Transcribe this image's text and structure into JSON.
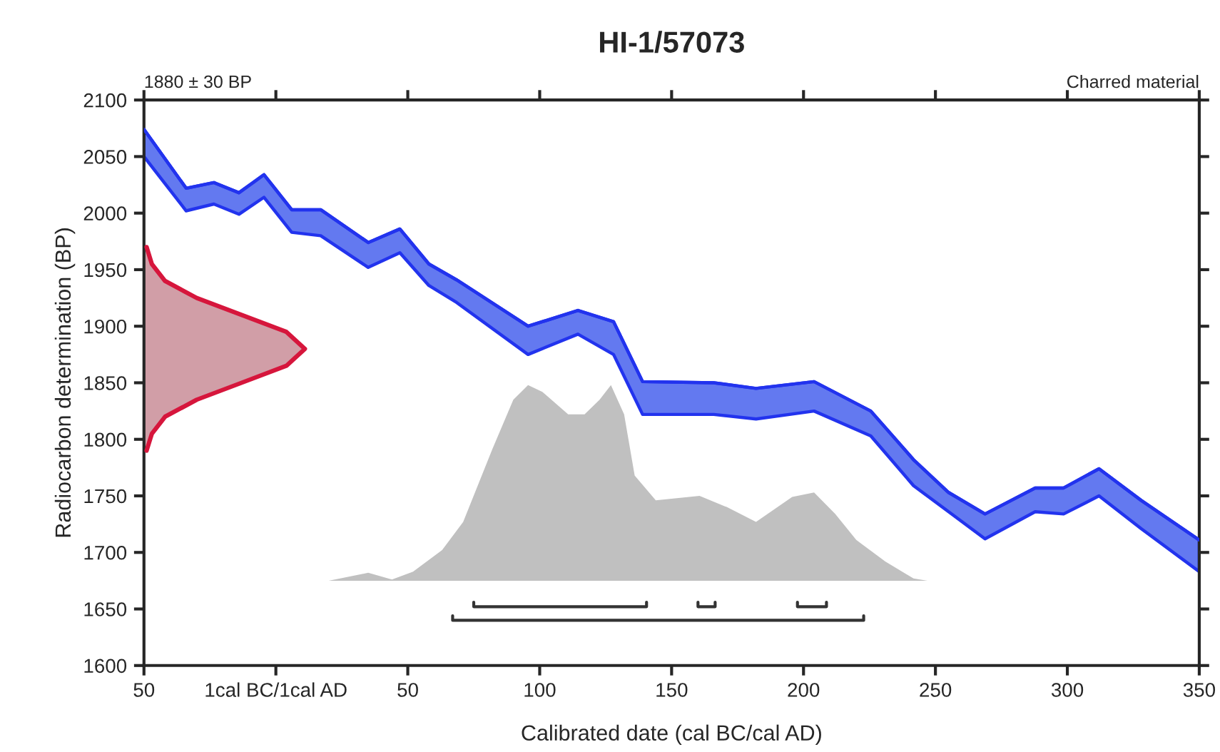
{
  "chart_data": {
    "type": "area",
    "title": "HI-1/57073",
    "xlabel": "Calibrated date (cal BC/cal AD)",
    "ylabel": "Radiocarbon determination (BP)",
    "annotations": [
      "1880 ± 30 BP",
      "Charred material"
    ],
    "xlim": [
      -50,
      350
    ],
    "xticks": [
      {
        "value": -50,
        "label": "50"
      },
      {
        "value": 0,
        "label": "1cal BC/1cal AD"
      },
      50,
      100,
      150,
      200,
      250,
      300,
      350
    ],
    "ylim": [
      1600,
      2100
    ],
    "yticks": [
      1600,
      1650,
      1700,
      1750,
      1800,
      1850,
      1900,
      1950,
      2000,
      2050,
      2100
    ],
    "grid": false,
    "legend": false,
    "series": [
      {
        "type": "line",
        "color": "#2233ee",
        "x": [
          -50,
          -34,
          -23.5,
          -14,
          -4.5,
          6,
          17,
          35,
          47,
          58,
          68.5,
          95.6,
          114.5,
          128,
          139,
          166,
          182,
          204,
          225.5,
          241.7,
          255,
          268.8,
          287.8,
          298.6,
          312,
          328,
          350
        ],
        "upper": [
          2074,
          2022,
          2027,
          2018,
          2034,
          2003,
          2003,
          1974,
          1986,
          1955,
          1941,
          1900,
          1914,
          1904,
          1851,
          1850,
          1845,
          1851,
          1825,
          1782,
          1753,
          1734,
          1757,
          1757,
          1774,
          1746,
          1711
        ],
        "lower": [
          2050,
          2002,
          2008,
          1999,
          2014,
          1983,
          1980,
          1952,
          1965,
          1936,
          1921,
          1875,
          1893,
          1875,
          1822,
          1822,
          1818,
          1825,
          1803,
          1759,
          1736,
          1712,
          1736,
          1734,
          1750,
          1721,
          1683
        ],
        "values": [
          2074,
          2022,
          2027,
          2018,
          2034,
          2003,
          2003,
          1974,
          1986,
          1955,
          1941,
          1900,
          1914,
          1904,
          1851,
          1850,
          1845,
          1851,
          1825,
          1782,
          1753,
          1734,
          1757,
          1757,
          1774,
          1746,
          1711
        ]
      },
      {
        "color": "#d6163c",
        "x": [
          -49,
          -47,
          -42,
          -30,
          -13,
          4,
          11,
          4,
          -13,
          -30,
          -42,
          -47,
          -49
        ],
        "values": [
          1790,
          1805,
          1820,
          1835,
          1850,
          1865,
          1880,
          1895,
          1910,
          1925,
          1940,
          1955,
          1970
        ]
      },
      {
        "color": "#c0c0c0",
        "x": [
          -50,
          20,
          35,
          44,
          52,
          63,
          71,
          82,
          90,
          95.6,
          101,
          110.8,
          117,
          122.7,
          127,
          132,
          136,
          144,
          160.6,
          171,
          182,
          195.7,
          204,
          212,
          220,
          231,
          241.7,
          247,
          350
        ],
        "values": [
          1675,
          1675,
          1682,
          1676,
          1683,
          1702,
          1727,
          1791,
          1835,
          1848,
          1842,
          1822,
          1822,
          1835,
          1848,
          1822,
          1768,
          1746,
          1750,
          1740,
          1727,
          1749,
          1753,
          1734,
          1711,
          1692,
          1677,
          1675,
          1675
        ]
      },
      {
        "type": "line",
        "color": "#333333",
        "x": [
          75,
          75,
          140.5,
          140.5,
          150,
          160,
          160,
          166.5,
          166.5,
          180,
          197.7,
          197.7,
          208.7,
          208.7
        ],
        "values": [
          1656,
          1652,
          1652,
          1656,
          null,
          1656,
          1652,
          1652,
          1656,
          null,
          1656,
          1652,
          1652,
          1656
        ]
      },
      {
        "type": "line",
        "color": "#333333",
        "x": [
          67,
          67,
          222.8,
          222.8
        ],
        "values": [
          1644,
          1640,
          1640,
          1644
        ]
      }
    ]
  }
}
